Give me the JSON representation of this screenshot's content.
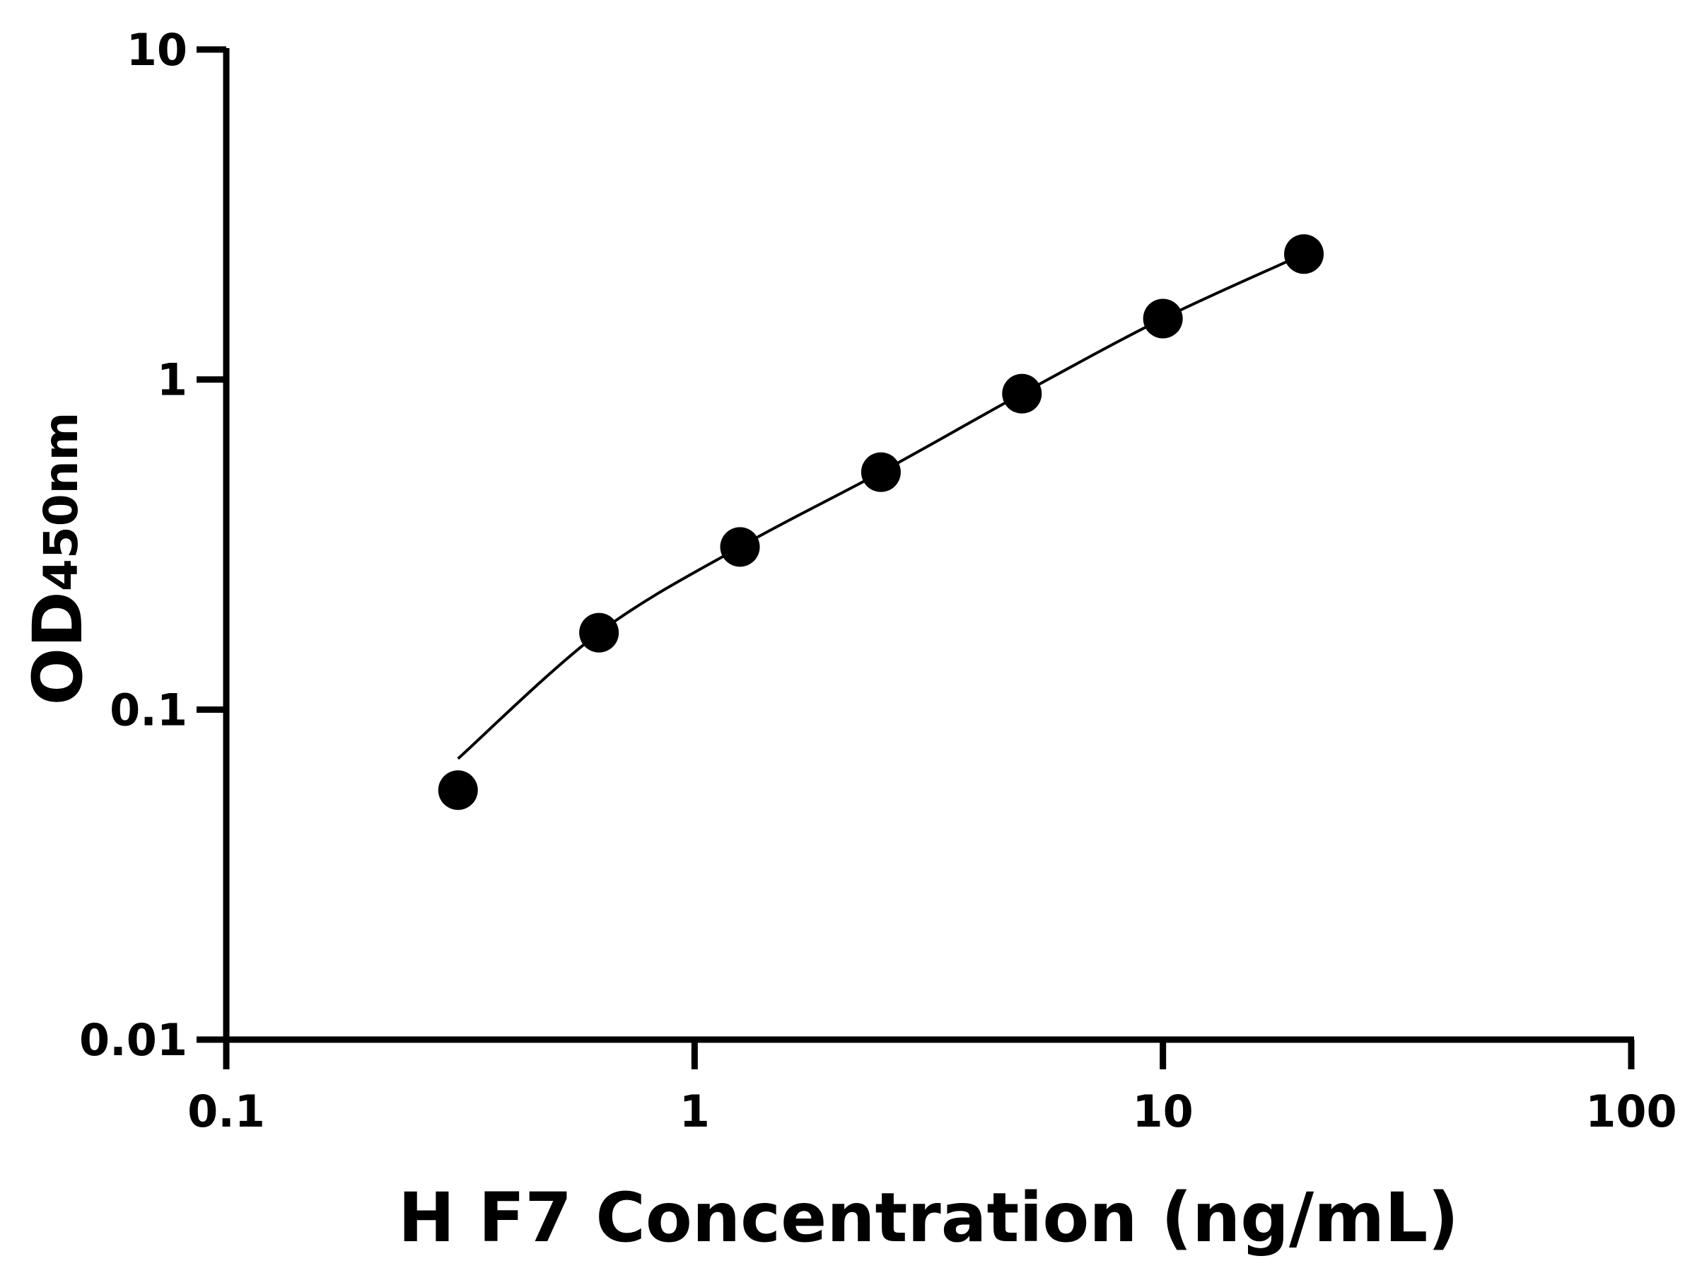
{
  "chart_data": {
    "type": "scatter",
    "title": "",
    "xlabel": "H F7 Concentration (ng/mL)",
    "ylabel_main": "OD",
    "ylabel_sub": "450nm",
    "x_scale": "log",
    "y_scale": "log",
    "xlim": [
      0.1,
      100
    ],
    "ylim": [
      0.01,
      10
    ],
    "x_ticks": [
      0.1,
      1,
      10,
      100
    ],
    "x_tick_labels": [
      "0.1",
      "1",
      "10",
      "100"
    ],
    "y_ticks": [
      0.01,
      0.1,
      1,
      10
    ],
    "y_tick_labels": [
      "0.01",
      "0.1",
      "1",
      "10"
    ],
    "grid": false,
    "legend": "none",
    "points": {
      "x": [
        0.3125,
        0.625,
        1.25,
        2.5,
        5,
        10,
        20
      ],
      "y": [
        0.057,
        0.171,
        0.311,
        0.524,
        0.906,
        1.53,
        2.4
      ]
    },
    "fit_curve": {
      "x": [
        0.3125,
        0.625,
        1.25,
        2.5,
        5,
        10,
        20
      ],
      "y": [
        0.071,
        0.171,
        0.311,
        0.524,
        0.906,
        1.53,
        2.4
      ]
    },
    "colors": {
      "points": "#000000",
      "curve": "#000000",
      "axes": "#000000"
    }
  }
}
